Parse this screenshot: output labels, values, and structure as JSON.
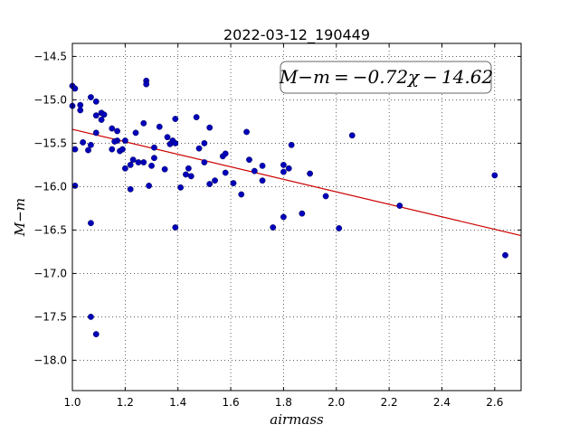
{
  "chart_data": {
    "type": "scatter",
    "title": "2022-03-12_190449",
    "xlabel": "airmass",
    "ylabel": "M−m",
    "xlim": [
      1.0,
      2.7
    ],
    "ylim": [
      -18.35,
      -14.35
    ],
    "xticks": [
      "1.0",
      "1.2",
      "1.4",
      "1.6",
      "1.8",
      "2.0",
      "2.2",
      "2.4",
      "2.6"
    ],
    "yticks": [
      "−14.5",
      "−15.0",
      "−15.5",
      "−16.0",
      "−16.5",
      "−17.0",
      "−17.5",
      "−18.0"
    ],
    "grid": true,
    "annotation": "M−m = −0.72χ − 14.62",
    "fit": {
      "slope": -0.72,
      "intercept": -14.62,
      "color": "#cc0000"
    },
    "point_color": "#0000bb",
    "points": [
      [
        1.0,
        -14.84
      ],
      [
        1.01,
        -14.87
      ],
      [
        1.0,
        -15.07
      ],
      [
        1.03,
        -15.06
      ],
      [
        1.03,
        -15.12
      ],
      [
        1.01,
        -15.57
      ],
      [
        1.04,
        -15.49
      ],
      [
        1.06,
        -15.58
      ],
      [
        1.07,
        -15.52
      ],
      [
        1.01,
        -15.99
      ],
      [
        1.07,
        -14.97
      ],
      [
        1.09,
        -15.02
      ],
      [
        1.09,
        -15.18
      ],
      [
        1.11,
        -15.15
      ],
      [
        1.12,
        -15.17
      ],
      [
        1.11,
        -15.23
      ],
      [
        1.09,
        -15.38
      ],
      [
        1.15,
        -15.33
      ],
      [
        1.17,
        -15.36
      ],
      [
        1.17,
        -15.47
      ],
      [
        1.16,
        -15.48
      ],
      [
        1.15,
        -15.57
      ],
      [
        1.18,
        -15.59
      ],
      [
        1.19,
        -15.57
      ],
      [
        1.2,
        -15.47
      ],
      [
        1.2,
        -15.79
      ],
      [
        1.23,
        -15.69
      ],
      [
        1.22,
        -15.75
      ],
      [
        1.25,
        -15.72
      ],
      [
        1.27,
        -15.72
      ],
      [
        1.24,
        -15.38
      ],
      [
        1.27,
        -15.27
      ],
      [
        1.28,
        -14.78
      ],
      [
        1.28,
        -14.82
      ],
      [
        1.3,
        -15.76
      ],
      [
        1.31,
        -15.67
      ],
      [
        1.31,
        -15.55
      ],
      [
        1.33,
        -15.31
      ],
      [
        1.36,
        -15.43
      ],
      [
        1.37,
        -15.51
      ],
      [
        1.38,
        -15.47
      ],
      [
        1.39,
        -15.5
      ],
      [
        1.39,
        -15.22
      ],
      [
        1.22,
        -16.03
      ],
      [
        1.29,
        -15.99
      ],
      [
        1.35,
        -15.8
      ],
      [
        1.39,
        -16.47
      ],
      [
        1.41,
        -16.01
      ],
      [
        1.43,
        -15.86
      ],
      [
        1.44,
        -15.79
      ],
      [
        1.45,
        -15.88
      ],
      [
        1.47,
        -15.2
      ],
      [
        1.48,
        -15.56
      ],
      [
        1.5,
        -15.5
      ],
      [
        1.5,
        -15.72
      ],
      [
        1.52,
        -15.32
      ],
      [
        1.52,
        -15.97
      ],
      [
        1.54,
        -15.93
      ],
      [
        1.57,
        -15.65
      ],
      [
        1.58,
        -15.62
      ],
      [
        1.58,
        -15.84
      ],
      [
        1.61,
        -15.96
      ],
      [
        1.64,
        -16.09
      ],
      [
        1.66,
        -15.37
      ],
      [
        1.67,
        -15.69
      ],
      [
        1.69,
        -15.82
      ],
      [
        1.72,
        -15.76
      ],
      [
        1.72,
        -15.93
      ],
      [
        1.76,
        -16.47
      ],
      [
        1.8,
        -15.75
      ],
      [
        1.8,
        -15.83
      ],
      [
        1.8,
        -16.35
      ],
      [
        1.82,
        -15.79
      ],
      [
        1.83,
        -15.52
      ],
      [
        1.87,
        -16.31
      ],
      [
        1.9,
        -15.85
      ],
      [
        1.96,
        -16.11
      ],
      [
        2.01,
        -16.48
      ],
      [
        2.06,
        -15.41
      ],
      [
        2.24,
        -16.22
      ],
      [
        2.6,
        -15.87
      ],
      [
        2.64,
        -16.79
      ],
      [
        1.07,
        -16.42
      ],
      [
        1.07,
        -17.5
      ],
      [
        1.09,
        -17.7
      ]
    ]
  }
}
